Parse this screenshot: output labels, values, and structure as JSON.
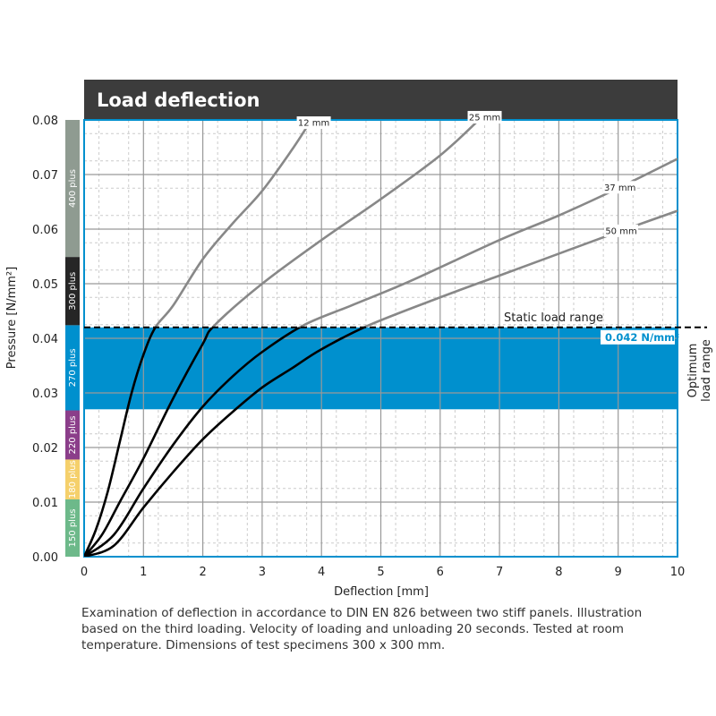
{
  "chart_data": {
    "type": "line",
    "title": "Load deflection",
    "xlabel": "Deflection [mm]",
    "ylabel": "Pressure [N/mm²]",
    "xlim": [
      0,
      10
    ],
    "ylim": [
      0,
      0.08
    ],
    "x_ticks": [
      "0",
      "1",
      "2",
      "3",
      "4",
      "5",
      "6",
      "7",
      "8",
      "9",
      "10"
    ],
    "y_ticks": [
      "0.00",
      "0.01",
      "0.02",
      "0.03",
      "0.04",
      "0.05",
      "0.06",
      "0.07",
      "0.08"
    ],
    "grid": true,
    "static_load_level": 0.042,
    "static_load_label": "Static load range",
    "static_load_value_label": "0.042 N/mm²",
    "optimum_range": [
      0.027,
      0.042
    ],
    "optimum_label_lines": [
      "Optimum",
      "load range"
    ],
    "colors": {
      "band": "#0090CE",
      "frame": "#0090CE",
      "title_bar": "#3C3C3C",
      "curve_above": "#888888",
      "curve_below": "#000000"
    },
    "classes": [
      {
        "label": "150 plus",
        "from": 0.0,
        "to": 0.0105,
        "color": "#6DB98A"
      },
      {
        "label": "180 plus",
        "from": 0.0105,
        "to": 0.0178,
        "color": "#F5D06B"
      },
      {
        "label": "220 plus",
        "from": 0.0178,
        "to": 0.0268,
        "color": "#8B3E8A"
      },
      {
        "label": "270 plus",
        "from": 0.0268,
        "to": 0.0424,
        "color": "#0090CE"
      },
      {
        "label": "300 plus",
        "from": 0.0424,
        "to": 0.0549,
        "color": "#262626"
      },
      {
        "label": "400 plus",
        "from": 0.0549,
        "to": 0.08,
        "color": "#8F9B91"
      }
    ],
    "series": [
      {
        "name": "12 mm",
        "x": [
          0,
          0.2,
          0.4,
          0.6,
          0.8,
          1.0,
          1.2,
          1.5,
          2.0,
          2.5,
          3.0,
          3.5,
          3.8
        ],
        "y": [
          0,
          0.005,
          0.012,
          0.021,
          0.03,
          0.037,
          0.042,
          0.046,
          0.0545,
          0.061,
          0.067,
          0.0745,
          0.0795
        ]
      },
      {
        "name": "25 mm",
        "x": [
          0,
          0.3,
          0.6,
          1.0,
          1.5,
          2.0,
          2.2,
          3.0,
          4.0,
          5.0,
          6.0,
          6.7
        ],
        "y": [
          0,
          0.004,
          0.01,
          0.018,
          0.029,
          0.039,
          0.0424,
          0.05,
          0.058,
          0.0655,
          0.0735,
          0.0805
        ]
      },
      {
        "name": "37 mm",
        "x": [
          0,
          0.5,
          1.0,
          1.5,
          2.0,
          2.5,
          3.0,
          3.7,
          4.5,
          5.5,
          7.0,
          8.0,
          9.0,
          10.3
        ],
        "y": [
          0,
          0.004,
          0.0125,
          0.0205,
          0.0275,
          0.033,
          0.0375,
          0.0424,
          0.046,
          0.0505,
          0.058,
          0.0625,
          0.0675,
          0.0745
        ]
      },
      {
        "name": "50 mm",
        "x": [
          0,
          0.5,
          1.0,
          1.5,
          2.0,
          2.5,
          3.0,
          3.5,
          4.0,
          4.8,
          6.0,
          7.0,
          8.0,
          9.0,
          10.3
        ],
        "y": [
          0,
          0.002,
          0.009,
          0.0155,
          0.0215,
          0.0265,
          0.031,
          0.0345,
          0.038,
          0.0424,
          0.0475,
          0.0515,
          0.0555,
          0.0595,
          0.0645
        ]
      }
    ],
    "curve_label_at_x": [
      3.87,
      6.75,
      9.03,
      9.05
    ]
  },
  "caption": "Examination of deflection in accordance to DIN EN 826 between two stiff panels. Illustration based on the third loading. Velocity of loading and unloading 20 seconds. Tested at room temperature. Dimensions of test specimens 300 x 300 mm."
}
